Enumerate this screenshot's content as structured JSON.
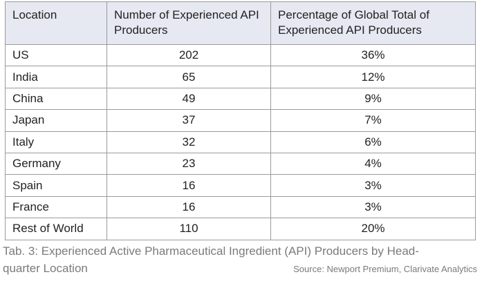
{
  "table": {
    "headers": [
      "Location",
      "Number of Experienced API Producers",
      "Percentage of Global Total of Experienced API Producers"
    ],
    "rows": [
      {
        "location": "US",
        "count": "202",
        "percent": "36%"
      },
      {
        "location": "India",
        "count": "65",
        "percent": "12%"
      },
      {
        "location": "China",
        "count": "49",
        "percent": "9%"
      },
      {
        "location": "Japan",
        "count": "37",
        "percent": "7%"
      },
      {
        "location": "Italy",
        "count": "32",
        "percent": "6%"
      },
      {
        "location": "Germany",
        "count": "23",
        "percent": "4%"
      },
      {
        "location": "Spain",
        "count": "16",
        "percent": "3%"
      },
      {
        "location": "France",
        "count": "16",
        "percent": "3%"
      },
      {
        "location": "Rest of World",
        "count": "110",
        "percent": "20%"
      }
    ]
  },
  "caption": {
    "line1": "Tab. 3: Experienced Active Pharmaceutical Ingredient (API) Producers by Head-",
    "line2": "quarter Location",
    "source": "Source: Newport Premium, Clarivate Analytics"
  }
}
